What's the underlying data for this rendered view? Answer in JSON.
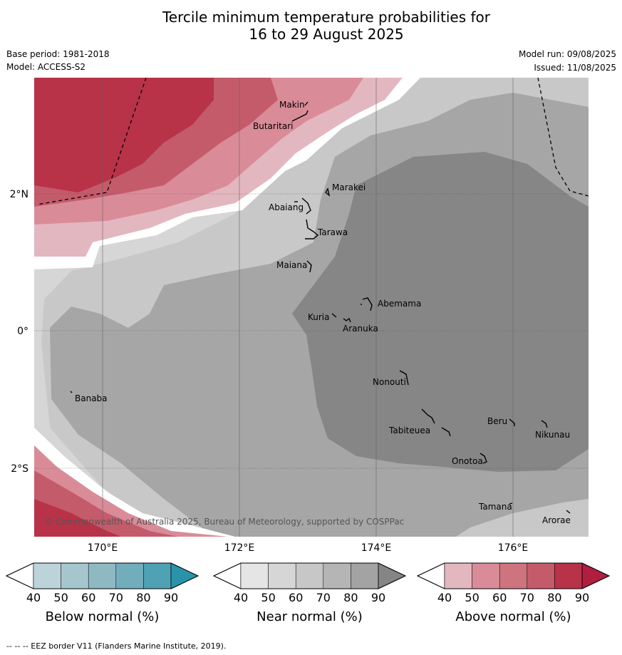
{
  "title_line1": "Tercile minimum temperature probabilities for",
  "title_line2": "16 to 29 August 2025",
  "base_period": "Base period: 1981-2018",
  "model": "Model: ACCESS-S2",
  "model_run": "Model run: 09/08/2025",
  "issued": "Issued: 11/08/2025",
  "lat_labels": [
    "2°N",
    "0°",
    "2°S"
  ],
  "lon_labels": [
    "170°E",
    "172°E",
    "174°E",
    "176°E"
  ],
  "places": [
    "Makin",
    "Butaritari",
    "Marakei",
    "Abaiang",
    "Tarawa",
    "Maiana",
    "Abemama",
    "Kuria",
    "Aranuka",
    "Nonouti",
    "Banaba",
    "Beru",
    "Nikunau",
    "Tabiteuea",
    "Onotoa",
    "Tamana",
    "Arorae"
  ],
  "copyright": "© Commonwealth of Australia 2025, Bureau of Meteorology, supported by COSPPac",
  "legend": {
    "ticks": [
      "40",
      "50",
      "60",
      "70",
      "80",
      "90"
    ],
    "below_label": "Below normal (%)",
    "near_label": "Near normal (%)",
    "above_label": "Above normal (%)",
    "below_colors": [
      "#ffffff",
      "#bdd3db",
      "#a6c6cd",
      "#8eb9c3",
      "#72adbb",
      "#4ea2b3",
      "#2a93aa"
    ],
    "near_colors": [
      "#ffffff",
      "#e5e5e5",
      "#d6d6d6",
      "#c7c7c7",
      "#b5b5b5",
      "#a3a3a3",
      "#858585"
    ],
    "above_colors": [
      "#ffffff",
      "#e3b7c0",
      "#d98c98",
      "#ce747f",
      "#c45b6b",
      "#b83248",
      "#b01e40"
    ]
  },
  "footnote": "--  --  -- EEZ border V11 (Flanders Marine Institute, 2019)."
}
